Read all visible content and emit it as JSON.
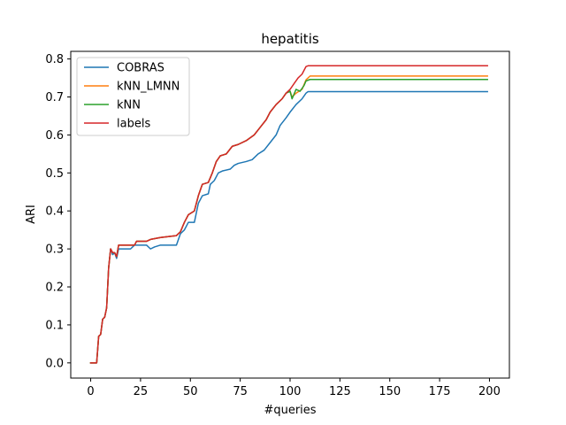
{
  "chart_data": {
    "type": "line",
    "title": "hepatitis",
    "xlabel": "#queries",
    "ylabel": "ARI",
    "xlim": [
      -10,
      210
    ],
    "ylim": [
      -0.04,
      0.82
    ],
    "xticks": [
      0,
      25,
      50,
      75,
      100,
      125,
      150,
      175,
      200
    ],
    "yticks": [
      0.0,
      0.1,
      0.2,
      0.3,
      0.4,
      0.5,
      0.6,
      0.7,
      0.8
    ],
    "grid": false,
    "legend_position": "top-left",
    "series": [
      {
        "name": "COBRAS",
        "color": "#1f77b4",
        "points": [
          [
            0,
            0
          ],
          [
            3,
            0
          ],
          [
            4,
            0.07
          ],
          [
            5,
            0.075
          ],
          [
            6,
            0.115
          ],
          [
            7,
            0.12
          ],
          [
            8,
            0.145
          ],
          [
            9,
            0.25
          ],
          [
            10,
            0.3
          ],
          [
            11,
            0.285
          ],
          [
            12,
            0.29
          ],
          [
            13,
            0.275
          ],
          [
            14,
            0.3
          ],
          [
            20,
            0.3
          ],
          [
            22,
            0.31
          ],
          [
            25,
            0.31
          ],
          [
            28,
            0.31
          ],
          [
            30,
            0.3
          ],
          [
            32,
            0.305
          ],
          [
            35,
            0.31
          ],
          [
            43,
            0.31
          ],
          [
            45,
            0.34
          ],
          [
            47,
            0.35
          ],
          [
            49,
            0.37
          ],
          [
            52,
            0.37
          ],
          [
            54,
            0.42
          ],
          [
            56,
            0.44
          ],
          [
            59,
            0.445
          ],
          [
            60,
            0.47
          ],
          [
            62,
            0.48
          ],
          [
            64,
            0.5
          ],
          [
            66,
            0.505
          ],
          [
            70,
            0.51
          ],
          [
            72,
            0.52
          ],
          [
            74,
            0.525
          ],
          [
            78,
            0.53
          ],
          [
            81,
            0.535
          ],
          [
            84,
            0.55
          ],
          [
            87,
            0.56
          ],
          [
            90,
            0.58
          ],
          [
            93,
            0.6
          ],
          [
            95,
            0.625
          ],
          [
            98,
            0.645
          ],
          [
            100,
            0.66
          ],
          [
            103,
            0.68
          ],
          [
            106,
            0.695
          ],
          [
            108,
            0.71
          ],
          [
            109,
            0.714
          ],
          [
            199,
            0.714
          ]
        ]
      },
      {
        "name": "kNN_LMNN",
        "color": "#ff7f0e",
        "points": [
          [
            0,
            0
          ],
          [
            3,
            0
          ],
          [
            4,
            0.07
          ],
          [
            5,
            0.075
          ],
          [
            6,
            0.115
          ],
          [
            7,
            0.12
          ],
          [
            8,
            0.145
          ],
          [
            9,
            0.25
          ],
          [
            10,
            0.3
          ],
          [
            11,
            0.29
          ],
          [
            12,
            0.29
          ],
          [
            13,
            0.28
          ],
          [
            14,
            0.31
          ],
          [
            22,
            0.31
          ],
          [
            23,
            0.32
          ],
          [
            28,
            0.32
          ],
          [
            30,
            0.325
          ],
          [
            35,
            0.33
          ],
          [
            43,
            0.335
          ],
          [
            45,
            0.345
          ],
          [
            47,
            0.37
          ],
          [
            49,
            0.39
          ],
          [
            52,
            0.4
          ],
          [
            54,
            0.44
          ],
          [
            56,
            0.47
          ],
          [
            59,
            0.475
          ],
          [
            61,
            0.5
          ],
          [
            63,
            0.53
          ],
          [
            65,
            0.545
          ],
          [
            68,
            0.55
          ],
          [
            71,
            0.57
          ],
          [
            74,
            0.575
          ],
          [
            78,
            0.585
          ],
          [
            82,
            0.6
          ],
          [
            85,
            0.62
          ],
          [
            88,
            0.64
          ],
          [
            90,
            0.66
          ],
          [
            93,
            0.68
          ],
          [
            96,
            0.695
          ],
          [
            98,
            0.71
          ],
          [
            100,
            0.715
          ],
          [
            101,
            0.7
          ],
          [
            103,
            0.71
          ],
          [
            106,
            0.72
          ],
          [
            108,
            0.745
          ],
          [
            110,
            0.755
          ],
          [
            199,
            0.755
          ]
        ]
      },
      {
        "name": "kNN",
        "color": "#2ca02c",
        "points": [
          [
            0,
            0
          ],
          [
            3,
            0
          ],
          [
            4,
            0.07
          ],
          [
            5,
            0.075
          ],
          [
            6,
            0.115
          ],
          [
            7,
            0.12
          ],
          [
            8,
            0.145
          ],
          [
            9,
            0.25
          ],
          [
            10,
            0.3
          ],
          [
            11,
            0.29
          ],
          [
            12,
            0.29
          ],
          [
            13,
            0.28
          ],
          [
            14,
            0.31
          ],
          [
            22,
            0.31
          ],
          [
            23,
            0.32
          ],
          [
            28,
            0.32
          ],
          [
            30,
            0.325
          ],
          [
            35,
            0.33
          ],
          [
            43,
            0.335
          ],
          [
            45,
            0.345
          ],
          [
            47,
            0.37
          ],
          [
            49,
            0.39
          ],
          [
            52,
            0.4
          ],
          [
            54,
            0.44
          ],
          [
            56,
            0.47
          ],
          [
            59,
            0.475
          ],
          [
            61,
            0.5
          ],
          [
            63,
            0.53
          ],
          [
            65,
            0.545
          ],
          [
            68,
            0.55
          ],
          [
            71,
            0.57
          ],
          [
            74,
            0.575
          ],
          [
            78,
            0.585
          ],
          [
            82,
            0.6
          ],
          [
            85,
            0.62
          ],
          [
            88,
            0.64
          ],
          [
            90,
            0.66
          ],
          [
            93,
            0.68
          ],
          [
            96,
            0.695
          ],
          [
            98,
            0.71
          ],
          [
            100,
            0.715
          ],
          [
            101,
            0.695
          ],
          [
            103,
            0.72
          ],
          [
            105,
            0.715
          ],
          [
            107,
            0.73
          ],
          [
            108,
            0.742
          ],
          [
            110,
            0.746
          ],
          [
            199,
            0.746
          ]
        ]
      },
      {
        "name": "labels",
        "color": "#d62728",
        "points": [
          [
            0,
            0
          ],
          [
            3,
            0
          ],
          [
            4,
            0.07
          ],
          [
            5,
            0.075
          ],
          [
            6,
            0.115
          ],
          [
            7,
            0.12
          ],
          [
            8,
            0.145
          ],
          [
            9,
            0.25
          ],
          [
            10,
            0.3
          ],
          [
            11,
            0.29
          ],
          [
            12,
            0.29
          ],
          [
            13,
            0.28
          ],
          [
            14,
            0.31
          ],
          [
            22,
            0.31
          ],
          [
            23,
            0.32
          ],
          [
            28,
            0.32
          ],
          [
            30,
            0.325
          ],
          [
            35,
            0.33
          ],
          [
            43,
            0.335
          ],
          [
            45,
            0.345
          ],
          [
            47,
            0.37
          ],
          [
            49,
            0.39
          ],
          [
            52,
            0.4
          ],
          [
            54,
            0.44
          ],
          [
            56,
            0.47
          ],
          [
            59,
            0.475
          ],
          [
            61,
            0.5
          ],
          [
            63,
            0.53
          ],
          [
            65,
            0.545
          ],
          [
            68,
            0.55
          ],
          [
            71,
            0.57
          ],
          [
            74,
            0.575
          ],
          [
            78,
            0.585
          ],
          [
            82,
            0.6
          ],
          [
            85,
            0.62
          ],
          [
            88,
            0.64
          ],
          [
            90,
            0.66
          ],
          [
            93,
            0.68
          ],
          [
            96,
            0.695
          ],
          [
            98,
            0.71
          ],
          [
            100,
            0.72
          ],
          [
            102,
            0.735
          ],
          [
            104,
            0.75
          ],
          [
            106,
            0.76
          ],
          [
            108,
            0.78
          ],
          [
            109,
            0.782
          ],
          [
            199,
            0.782
          ]
        ]
      }
    ]
  }
}
